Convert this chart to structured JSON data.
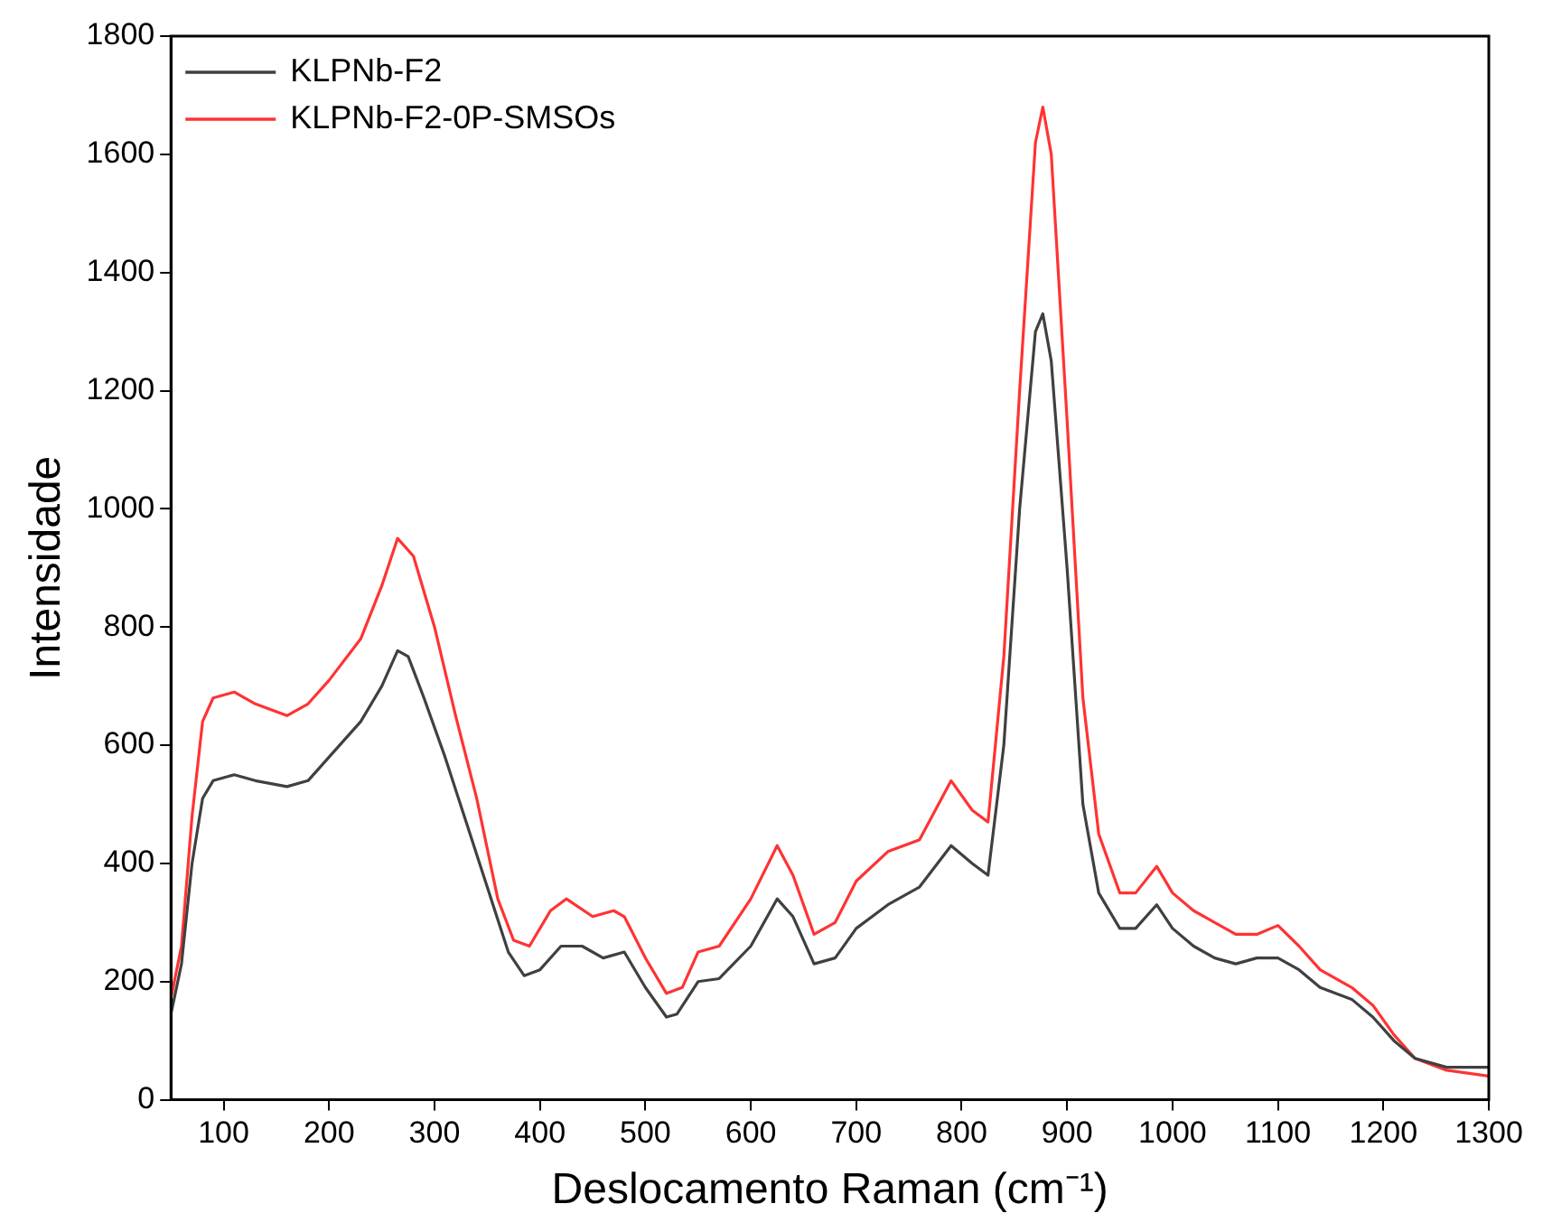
{
  "chart_data": {
    "type": "line",
    "xlabel": "Deslocamento Raman (cm⁻¹)",
    "ylabel": "Intensidade",
    "xlim": [
      50,
      1300
    ],
    "xticks": [
      100,
      200,
      300,
      400,
      500,
      600,
      700,
      800,
      900,
      1000,
      1100,
      1200,
      1300
    ],
    "ylim": [
      0,
      1800
    ],
    "yticks": [
      0,
      200,
      400,
      600,
      800,
      1000,
      1200,
      1400,
      1600,
      1800
    ],
    "grid": false,
    "legend": "top left",
    "marker": "none",
    "line_style": "solid",
    "series": [
      {
        "name": "KLPNb-F2",
        "color": "#404040",
        "x": [
          50,
          60,
          70,
          80,
          90,
          110,
          130,
          160,
          180,
          200,
          230,
          250,
          265,
          275,
          290,
          310,
          330,
          350,
          370,
          385,
          400,
          420,
          440,
          460,
          480,
          500,
          520,
          530,
          550,
          570,
          600,
          625,
          640,
          660,
          680,
          700,
          730,
          760,
          790,
          810,
          825,
          840,
          855,
          870,
          877,
          885,
          900,
          915,
          930,
          950,
          965,
          985,
          1000,
          1020,
          1040,
          1060,
          1080,
          1100,
          1120,
          1140,
          1170,
          1190,
          1210,
          1230,
          1260,
          1300
        ],
        "values": [
          145,
          230,
          400,
          510,
          540,
          550,
          540,
          530,
          540,
          580,
          640,
          700,
          760,
          750,
          680,
          580,
          470,
          360,
          250,
          210,
          220,
          260,
          260,
          240,
          250,
          190,
          140,
          145,
          200,
          205,
          260,
          340,
          310,
          230,
          240,
          290,
          330,
          360,
          430,
          400,
          380,
          600,
          1000,
          1300,
          1330,
          1250,
          900,
          500,
          350,
          290,
          290,
          330,
          290,
          260,
          240,
          230,
          240,
          240,
          220,
          190,
          170,
          140,
          100,
          70,
          55,
          55
        ]
      },
      {
        "name": "KLPNb-F2-0P-SMSOs",
        "color": "#ff3333",
        "x": [
          50,
          60,
          70,
          80,
          90,
          110,
          130,
          160,
          180,
          200,
          230,
          250,
          265,
          280,
          300,
          320,
          340,
          360,
          375,
          390,
          410,
          425,
          450,
          470,
          480,
          500,
          520,
          535,
          550,
          570,
          600,
          625,
          640,
          660,
          680,
          700,
          730,
          760,
          790,
          810,
          825,
          840,
          855,
          870,
          877,
          885,
          900,
          915,
          930,
          950,
          965,
          985,
          1000,
          1020,
          1040,
          1060,
          1080,
          1100,
          1120,
          1140,
          1170,
          1190,
          1210,
          1230,
          1260,
          1300
        ],
        "values": [
          172,
          260,
          480,
          640,
          680,
          690,
          670,
          650,
          670,
          710,
          780,
          870,
          950,
          920,
          800,
          650,
          510,
          340,
          270,
          260,
          320,
          340,
          310,
          320,
          310,
          240,
          180,
          190,
          250,
          260,
          340,
          430,
          380,
          280,
          300,
          370,
          420,
          440,
          540,
          490,
          470,
          750,
          1200,
          1620,
          1680,
          1600,
          1150,
          680,
          450,
          350,
          350,
          395,
          350,
          320,
          300,
          280,
          280,
          295,
          260,
          220,
          190,
          160,
          110,
          70,
          50,
          40
        ]
      }
    ]
  }
}
